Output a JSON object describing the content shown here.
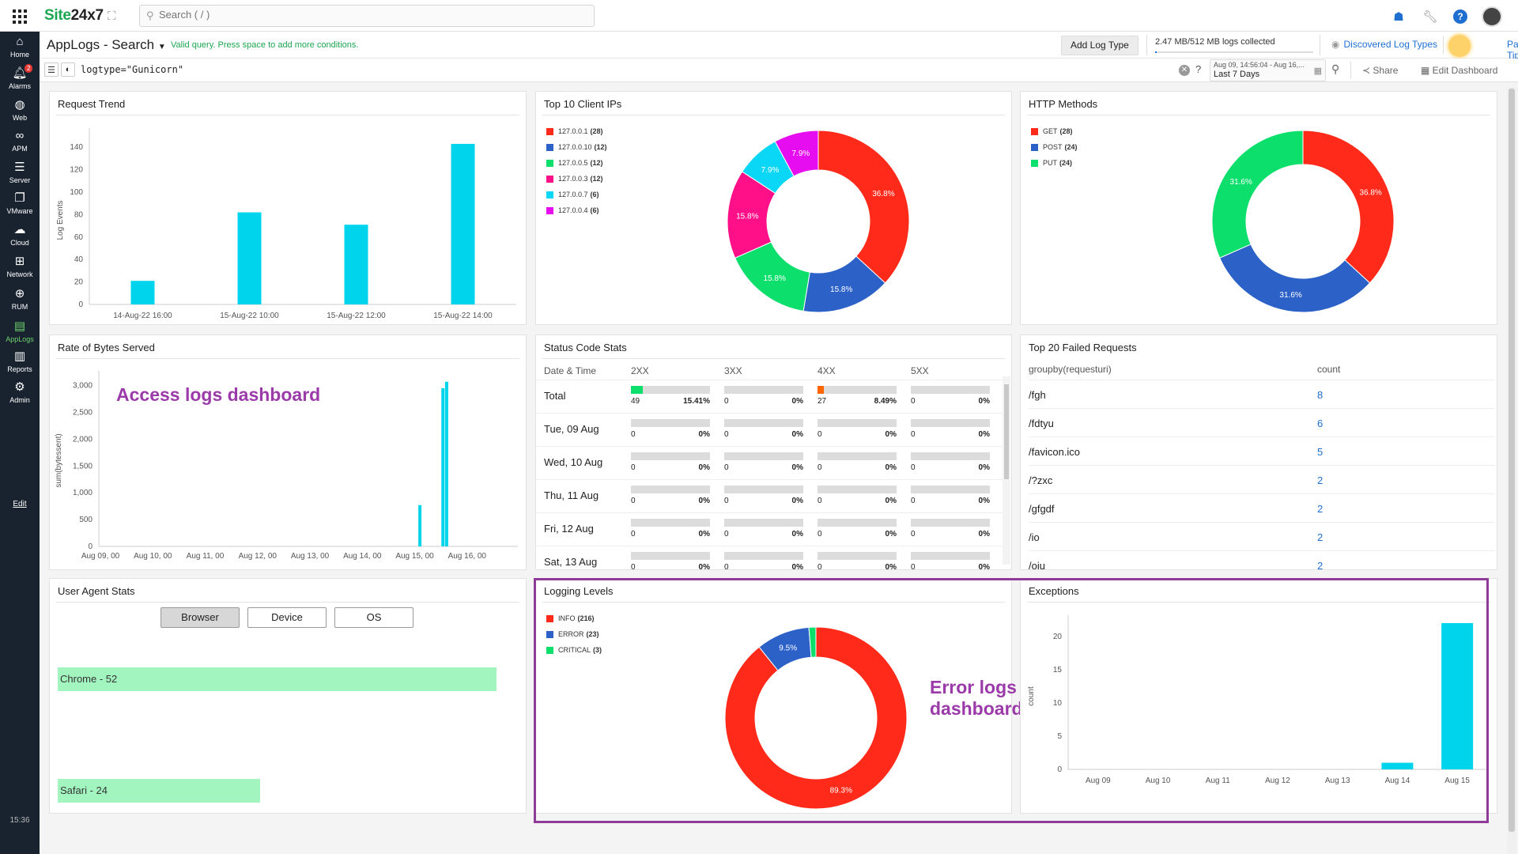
{
  "topbar": {
    "brand_a": "Site",
    "brand_b": "24x7",
    "search_placeholder": "Search ( / )"
  },
  "sidebar": {
    "items": [
      {
        "label": "Home",
        "icon": "home-icon"
      },
      {
        "label": "Alarms",
        "icon": "bell-icon",
        "badge": "2"
      },
      {
        "label": "Web",
        "icon": "globe-icon"
      },
      {
        "label": "APM",
        "icon": "apm-icon"
      },
      {
        "label": "Server",
        "icon": "server-icon"
      },
      {
        "label": "VMware",
        "icon": "vmware-icon"
      },
      {
        "label": "Cloud",
        "icon": "cloud-icon"
      },
      {
        "label": "Network",
        "icon": "network-icon"
      },
      {
        "label": "RUM",
        "icon": "rum-icon"
      },
      {
        "label": "AppLogs",
        "icon": "applogs-icon"
      },
      {
        "label": "Reports",
        "icon": "reports-icon"
      },
      {
        "label": "Admin",
        "icon": "gear-icon"
      }
    ],
    "edit": "Edit",
    "time": "15:36"
  },
  "header": {
    "title": "AppLogs - Search",
    "valid_msg": "Valid query. Press space to add more conditions.",
    "add_log_type": "Add Log Type",
    "logs_collected": "2.47 MB/512 MB logs collected",
    "discovered": "Discovered Log Types",
    "page_tips": "Page Tips"
  },
  "query": {
    "text": "logtype=\"Gunicorn\"",
    "date_line1": "Aug 09, 14:56:04 - Aug 16,...",
    "date_line2": "Last 7 Days",
    "share": "Share",
    "edit_dashboard": "Edit Dashboard"
  },
  "annotations": {
    "access": "Access logs dashboard",
    "error": "Error logs dashboard"
  },
  "widgets": {
    "request_trend": {
      "title": "Request Trend",
      "chart_data": {
        "type": "bar",
        "ylabel": "Log Events",
        "categories": [
          "14-Aug-22 16:00",
          "15-Aug-22 10:00",
          "15-Aug-22 12:00",
          "15-Aug-22 14:00"
        ],
        "values": [
          21,
          82,
          71,
          143
        ],
        "yticks": [
          0,
          20,
          40,
          60,
          80,
          100,
          120,
          140
        ],
        "ylim": [
          0,
          150
        ],
        "color": "#00d4ec"
      }
    },
    "client_ips": {
      "title": "Top 10 Client IPs",
      "legend": [
        {
          "label": "127.0.0.1",
          "count": "(28)",
          "color": "#ff2a1a"
        },
        {
          "label": "127.0.0.10",
          "count": "(12)",
          "color": "#2c62c8"
        },
        {
          "label": "127.0.0.5",
          "count": "(12)",
          "color": "#0cdf6b"
        },
        {
          "label": "127.0.0.3",
          "count": "(12)",
          "color": "#ff0f88"
        },
        {
          "label": "127.0.0.7",
          "count": "(6)",
          "color": "#0ad6f5"
        },
        {
          "label": "127.0.0.4",
          "count": "(6)",
          "color": "#e60df0"
        }
      ],
      "chart_data": {
        "type": "pie",
        "labels": [
          "127.0.0.1",
          "127.0.0.10",
          "127.0.0.5",
          "127.0.0.3",
          "127.0.0.7",
          "127.0.0.4"
        ],
        "values": [
          28,
          12,
          12,
          12,
          6,
          6
        ],
        "percent_labels": [
          "36.8%",
          "15.8%",
          "15.8%",
          "15.8%",
          "7.9%",
          "7.9%"
        ]
      }
    },
    "http_methods": {
      "title": "HTTP Methods",
      "legend": [
        {
          "label": "GET",
          "count": "(28)",
          "color": "#ff2a1a"
        },
        {
          "label": "POST",
          "count": "(24)",
          "color": "#2c62c8"
        },
        {
          "label": "PUT",
          "count": "(24)",
          "color": "#0cdf6b"
        }
      ],
      "chart_data": {
        "type": "pie",
        "labels": [
          "GET",
          "POST",
          "PUT"
        ],
        "values": [
          28,
          24,
          24
        ],
        "percent_labels": [
          "36.8%",
          "31.6%",
          "31.6%"
        ]
      }
    },
    "bytes_served": {
      "title": "Rate of Bytes Served",
      "chart_data": {
        "type": "bar",
        "ylabel": "sum(bytessent)",
        "xticks": [
          "Aug 09, 00",
          "Aug 10, 00",
          "Aug 11, 00",
          "Aug 12, 00",
          "Aug 13, 00",
          "Aug 14, 00",
          "Aug 15, 00",
          "Aug 16, 00"
        ],
        "yticks": [
          "0",
          "500",
          "1,000",
          "1,500",
          "2,000",
          "2,500",
          "3,000"
        ],
        "ylim": [
          0,
          3200
        ],
        "bars": [
          {
            "x_day": 6.13,
            "value": 770
          },
          {
            "x_day": 6.57,
            "value": 2950
          },
          {
            "x_day": 6.64,
            "value": 3070
          }
        ],
        "color": "#00d4ec"
      }
    },
    "status_codes": {
      "title": "Status Code Stats",
      "columns": [
        "Date & Time",
        "2XX",
        "3XX",
        "4XX",
        "5XX"
      ],
      "rows": [
        {
          "label": "Total",
          "cells": [
            {
              "n": "49",
              "p": "15.41%",
              "fill": 0.1541,
              "color": "#0cdf6b"
            },
            {
              "n": "0",
              "p": "0%",
              "fill": 0,
              "color": "#0cdf6b"
            },
            {
              "n": "27",
              "p": "8.49%",
              "fill": 0.0849,
              "color": "#ff6600"
            },
            {
              "n": "0",
              "p": "0%",
              "fill": 0,
              "color": "#0cdf6b"
            }
          ]
        },
        {
          "label": "Tue, 09 Aug",
          "cells": [
            {
              "n": "0",
              "p": "0%",
              "fill": 0,
              "color": "#0cdf6b"
            },
            {
              "n": "0",
              "p": "0%",
              "fill": 0,
              "color": "#0cdf6b"
            },
            {
              "n": "0",
              "p": "0%",
              "fill": 0,
              "color": "#0cdf6b"
            },
            {
              "n": "0",
              "p": "0%",
              "fill": 0,
              "color": "#0cdf6b"
            }
          ]
        },
        {
          "label": "Wed, 10 Aug",
          "cells": [
            {
              "n": "0",
              "p": "0%",
              "fill": 0,
              "color": "#0cdf6b"
            },
            {
              "n": "0",
              "p": "0%",
              "fill": 0,
              "color": "#0cdf6b"
            },
            {
              "n": "0",
              "p": "0%",
              "fill": 0,
              "color": "#0cdf6b"
            },
            {
              "n": "0",
              "p": "0%",
              "fill": 0,
              "color": "#0cdf6b"
            }
          ]
        },
        {
          "label": "Thu, 11 Aug",
          "cells": [
            {
              "n": "0",
              "p": "0%",
              "fill": 0,
              "color": "#0cdf6b"
            },
            {
              "n": "0",
              "p": "0%",
              "fill": 0,
              "color": "#0cdf6b"
            },
            {
              "n": "0",
              "p": "0%",
              "fill": 0,
              "color": "#0cdf6b"
            },
            {
              "n": "0",
              "p": "0%",
              "fill": 0,
              "color": "#0cdf6b"
            }
          ]
        },
        {
          "label": "Fri, 12 Aug",
          "cells": [
            {
              "n": "0",
              "p": "0%",
              "fill": 0,
              "color": "#0cdf6b"
            },
            {
              "n": "0",
              "p": "0%",
              "fill": 0,
              "color": "#0cdf6b"
            },
            {
              "n": "0",
              "p": "0%",
              "fill": 0,
              "color": "#0cdf6b"
            },
            {
              "n": "0",
              "p": "0%",
              "fill": 0,
              "color": "#0cdf6b"
            }
          ]
        },
        {
          "label": "Sat, 13 Aug",
          "cells": [
            {
              "n": "0",
              "p": "0%",
              "fill": 0,
              "color": "#0cdf6b"
            },
            {
              "n": "0",
              "p": "0%",
              "fill": 0,
              "color": "#0cdf6b"
            },
            {
              "n": "0",
              "p": "0%",
              "fill": 0,
              "color": "#0cdf6b"
            },
            {
              "n": "0",
              "p": "0%",
              "fill": 0,
              "color": "#0cdf6b"
            }
          ]
        }
      ]
    },
    "failed_requests": {
      "title": "Top 20 Failed Requests",
      "col1": "groupby(requesturi)",
      "col2": "count",
      "rows": [
        {
          "uri": "/fgh",
          "count": "8"
        },
        {
          "uri": "/fdtyu",
          "count": "6"
        },
        {
          "uri": "/favicon.ico",
          "count": "5"
        },
        {
          "uri": "/?zxc",
          "count": "2"
        },
        {
          "uri": "/gfgdf",
          "count": "2"
        },
        {
          "uri": "/io",
          "count": "2"
        },
        {
          "uri": "/oiu",
          "count": "2"
        }
      ]
    },
    "user_agent": {
      "title": "User Agent Stats",
      "buttons": [
        "Browser",
        "Device",
        "OS"
      ],
      "chart_data": {
        "type": "bar",
        "categories": [
          "Chrome",
          "Safari"
        ],
        "values": [
          52,
          24
        ],
        "labels": [
          "Chrome - 52",
          "Safari - 24"
        ],
        "color": "#a3f5c0"
      }
    },
    "logging_levels": {
      "title": "Logging Levels",
      "legend": [
        {
          "label": "INFO",
          "count": "(216)",
          "color": "#ff2a1a"
        },
        {
          "label": "ERROR",
          "count": "(23)",
          "color": "#2c62c8"
        },
        {
          "label": "CRITICAL",
          "count": "(3)",
          "color": "#0cdf6b"
        }
      ],
      "chart_data": {
        "type": "pie",
        "labels": [
          "INFO",
          "ERROR",
          "CRITICAL"
        ],
        "values": [
          216,
          23,
          3
        ],
        "percent_labels": [
          "89.3%",
          "9.5%",
          ""
        ]
      }
    },
    "exceptions": {
      "title": "Exceptions",
      "chart_data": {
        "type": "bar",
        "ylabel": "count",
        "categories": [
          "Aug 09",
          "Aug 10",
          "Aug 11",
          "Aug 12",
          "Aug 13",
          "Aug 14",
          "Aug 15"
        ],
        "values": [
          0,
          0,
          0,
          0,
          0,
          1,
          22
        ],
        "yticks": [
          0,
          5,
          10,
          15,
          20
        ],
        "ylim": [
          0,
          22
        ],
        "color": "#00d4ec"
      }
    }
  }
}
